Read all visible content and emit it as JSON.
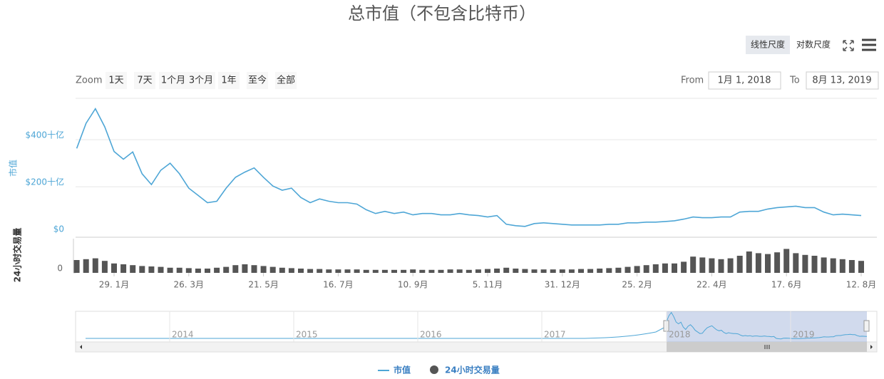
{
  "chart_data": {
    "type": "line",
    "title": "总市值（不包含比特币）",
    "ylabel": "市值",
    "y2label": "24小时交易量",
    "categories": [
      null,
      null,
      null,
      null,
      "29. 1月",
      null,
      null,
      null,
      null,
      null,
      null,
      null,
      "26. 3月",
      null,
      null,
      null,
      null,
      null,
      null,
      null,
      "21. 5月",
      null,
      null,
      null,
      null,
      null,
      null,
      null,
      "16. 7月",
      null,
      null,
      null,
      null,
      null,
      null,
      null,
      "10. 9月",
      null,
      null,
      null,
      null,
      null,
      null,
      null,
      "5. 11月",
      null,
      null,
      null,
      null,
      null,
      null,
      null,
      "31. 12月",
      null,
      null,
      null,
      null,
      null,
      null,
      null,
      "25. 2月",
      null,
      null,
      null,
      null,
      null,
      null,
      null,
      "22. 4月",
      null,
      null,
      null,
      null,
      null,
      null,
      null,
      "17. 6月",
      null,
      null,
      null,
      null,
      null,
      null,
      null,
      "12. 8月"
    ],
    "series": [
      {
        "name": "市值",
        "color": "#4ea6d6",
        "values": [
          363,
          470,
          532,
          455,
          350,
          317,
          348,
          255,
          209,
          270,
          300,
          255,
          194,
          163,
          132,
          138,
          194,
          240,
          262,
          280,
          240,
          203,
          185,
          194,
          154,
          132,
          148,
          138,
          132,
          132,
          126,
          102,
          86,
          95,
          86,
          92,
          80,
          86,
          86,
          80,
          80,
          86,
          80,
          77,
          71,
          77,
          40,
          34,
          31,
          43,
          46,
          43,
          40,
          37,
          37,
          37,
          37,
          40,
          40,
          46,
          46,
          49,
          49,
          52,
          55,
          62,
          71,
          68,
          68,
          71,
          71,
          92,
          95,
          95,
          105,
          111,
          114,
          117,
          111,
          111,
          92,
          80,
          83,
          80,
          77
        ]
      },
      {
        "name": "24小时交易量",
        "color": "#555555",
        "axis": "y2",
        "values": [
          30,
          32,
          34,
          28,
          22,
          20,
          18,
          16,
          15,
          14,
          12,
          12,
          11,
          10,
          10,
          12,
          14,
          18,
          20,
          18,
          16,
          14,
          12,
          11,
          10,
          9,
          9,
          8,
          8,
          8,
          8,
          7,
          7,
          7,
          7,
          7,
          8,
          7,
          7,
          7,
          8,
          8,
          7,
          8,
          9,
          10,
          12,
          10,
          9,
          8,
          8,
          8,
          8,
          8,
          9,
          9,
          10,
          11,
          12,
          14,
          16,
          18,
          20,
          22,
          22,
          26,
          38,
          36,
          34,
          32,
          34,
          40,
          50,
          46,
          44,
          48,
          56,
          46,
          42,
          40,
          36,
          34,
          32,
          30,
          28
        ]
      }
    ],
    "ylim": [
      0,
      540
    ],
    "yticks": [
      {
        "value": 0,
        "label": "$0"
      },
      {
        "value": 200,
        "label": "$200十亿"
      },
      {
        "value": 400,
        "label": "$400十亿"
      }
    ],
    "y2lim": [
      0,
      80
    ],
    "y2ticks": [
      0
    ],
    "grid": true,
    "legend": "bottom"
  },
  "controls": {
    "scale_buttons": [
      "线性尺度",
      "对数尺度"
    ],
    "zoom_label": "Zoom",
    "zoom_buttons": [
      "1天",
      "7天",
      "1个月",
      "3个月",
      "1年",
      "至今",
      "全部"
    ],
    "from_label": "From",
    "from_value": "1月 1, 2018",
    "to_label": "To",
    "to_value": "8月 13, 2019"
  },
  "navigator": {
    "labels": [
      "2014",
      "2015",
      "2016",
      "2017",
      "2018",
      "2019"
    ]
  }
}
